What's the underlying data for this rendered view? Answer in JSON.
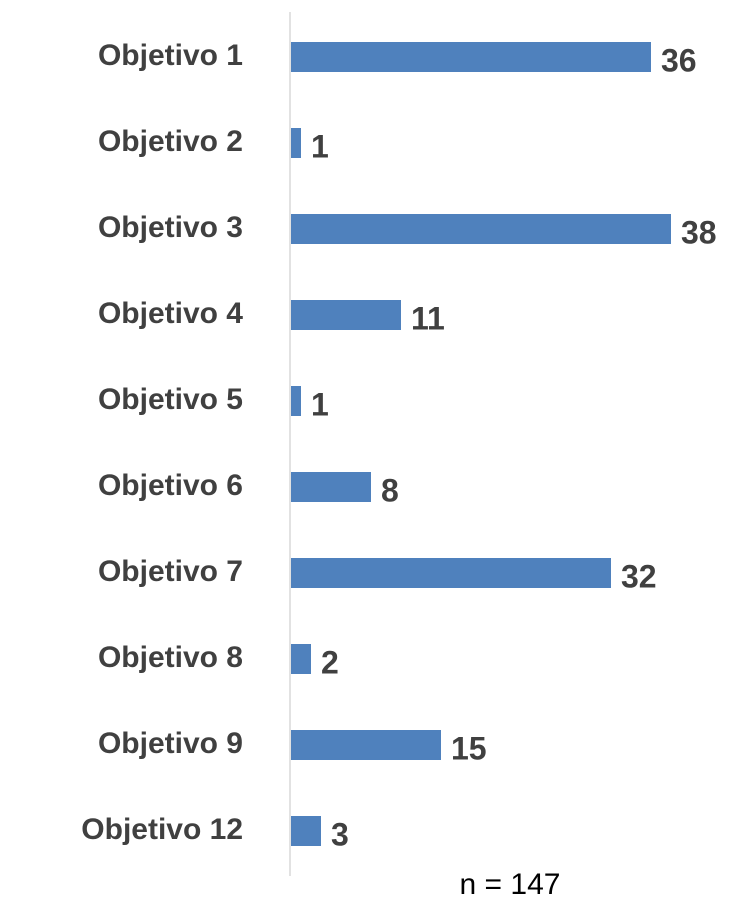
{
  "chart_data": {
    "type": "barh",
    "categories": [
      "Objetivo 1",
      "Objetivo 2",
      "Objetivo 3",
      "Objetivo 4",
      "Objetivo 5",
      "Objetivo 6",
      "Objetivo 7",
      "Objetivo 8",
      "Objetivo 9",
      "Objetivo 12"
    ],
    "values": [
      36,
      1,
      38,
      11,
      1,
      8,
      32,
      2,
      15,
      3
    ],
    "color": "#4f81bd",
    "annotation": "n = 147"
  }
}
